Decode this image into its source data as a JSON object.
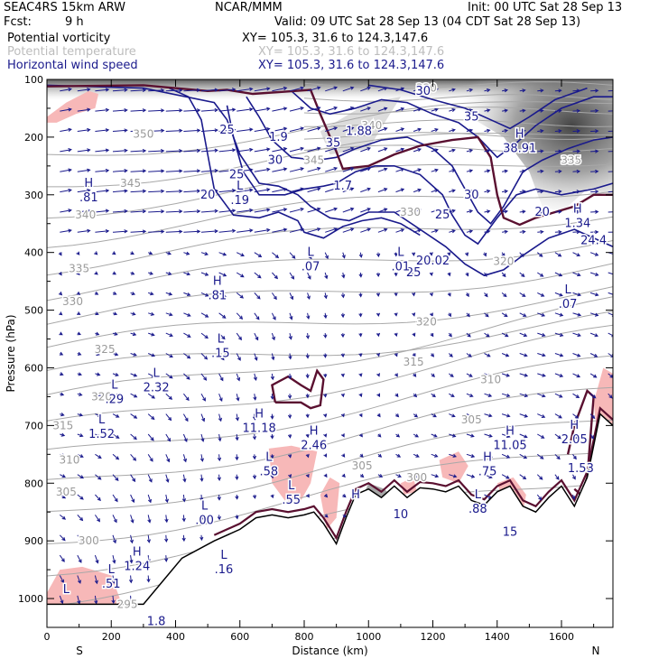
{
  "header": {
    "model": "SEAC4RS 15km ARW",
    "org": "NCAR/MMM",
    "init": "Init: 00 UTC Sat 28 Sep 13",
    "fcst_label": "Fcst:",
    "fcst_value": "9 h",
    "valid": "Valid: 09 UTC Sat 28 Sep 13 (04 CDT Sat 28 Sep 13)"
  },
  "fields": [
    {
      "name": "Potential vorticity",
      "xy": "XY= 105.3, 31.6 to 124.3,147.6",
      "color": "#000000"
    },
    {
      "name": "Potential temperature",
      "xy": "XY= 105.3, 31.6 to 124.3,147.6",
      "color": "#bdbdbd"
    },
    {
      "name": "Horizontal wind speed",
      "xy": "XY= 105.3, 31.6 to 124.3,147.6",
      "color": "#1a1a8c"
    }
  ],
  "chart_data": {
    "type": "cross-section",
    "xlabel": "Distance (km)",
    "ylabel": "Pressure (hPa)",
    "xlim": [
      0,
      1760
    ],
    "ylim": [
      1050,
      100
    ],
    "x_ticks": [
      0,
      200,
      400,
      600,
      800,
      1000,
      1200,
      1400,
      1600
    ],
    "y_ticks": [
      100,
      200,
      300,
      400,
      500,
      600,
      700,
      800,
      900,
      1000
    ],
    "x_end_labels": {
      "left": "S",
      "right": "N"
    },
    "colors": {
      "pv": "#5a1030",
      "theta": "#a8a8a8",
      "wind": "#1a1a8c",
      "pv_shade": "#f7b8b8",
      "ground": "#000000"
    },
    "terrain": [
      [
        0,
        1010
      ],
      [
        300,
        1010
      ],
      [
        420,
        930
      ],
      [
        520,
        900
      ],
      [
        600,
        880
      ],
      [
        650,
        860
      ],
      [
        700,
        855
      ],
      [
        750,
        860
      ],
      [
        800,
        855
      ],
      [
        830,
        850
      ],
      [
        860,
        870
      ],
      [
        900,
        905
      ],
      [
        930,
        860
      ],
      [
        960,
        820
      ],
      [
        1000,
        810
      ],
      [
        1040,
        825
      ],
      [
        1080,
        805
      ],
      [
        1120,
        825
      ],
      [
        1160,
        808
      ],
      [
        1200,
        810
      ],
      [
        1240,
        815
      ],
      [
        1280,
        805
      ],
      [
        1320,
        830
      ],
      [
        1360,
        838
      ],
      [
        1400,
        815
      ],
      [
        1440,
        805
      ],
      [
        1480,
        840
      ],
      [
        1520,
        850
      ],
      [
        1560,
        825
      ],
      [
        1600,
        805
      ],
      [
        1640,
        840
      ],
      [
        1680,
        790
      ],
      [
        1720,
        680
      ],
      [
        1760,
        700
      ]
    ],
    "theta_labels": [
      {
        "text": "350",
        "x": 300,
        "p": 195
      },
      {
        "text": "345",
        "x": 260,
        "p": 280
      },
      {
        "text": "340",
        "x": 120,
        "p": 335
      },
      {
        "text": "335",
        "x": 100,
        "p": 428
      },
      {
        "text": "330",
        "x": 80,
        "p": 485
      },
      {
        "text": "325",
        "x": 180,
        "p": 568
      },
      {
        "text": "320",
        "x": 170,
        "p": 650
      },
      {
        "text": "315",
        "x": 50,
        "p": 700
      },
      {
        "text": "310",
        "x": 70,
        "p": 760
      },
      {
        "text": "305",
        "x": 60,
        "p": 815
      },
      {
        "text": "300",
        "x": 130,
        "p": 900
      },
      {
        "text": "295",
        "x": 250,
        "p": 1010
      },
      {
        "text": "320",
        "x": 1180,
        "p": 520
      },
      {
        "text": "315",
        "x": 1140,
        "p": 590
      },
      {
        "text": "310",
        "x": 1380,
        "p": 620
      },
      {
        "text": "305",
        "x": 1320,
        "p": 690
      },
      {
        "text": "300",
        "x": 1150,
        "p": 790
      },
      {
        "text": "305",
        "x": 980,
        "p": 770
      },
      {
        "text": "330",
        "x": 1130,
        "p": 330
      },
      {
        "text": "320",
        "x": 1420,
        "p": 415
      },
      {
        "text": "335",
        "x": 1630,
        "p": 240
      },
      {
        "text": "340",
        "x": 1010,
        "p": 180
      },
      {
        "text": "345",
        "x": 830,
        "p": 240
      },
      {
        "text": "330",
        "x": 1180,
        "p": 115
      }
    ],
    "wind_labels": [
      {
        "text": "30",
        "x": 1170,
        "p": 120
      },
      {
        "text": "35",
        "x": 1320,
        "p": 165
      },
      {
        "text": "25",
        "x": 560,
        "p": 188
      },
      {
        "text": "30",
        "x": 710,
        "p": 240
      },
      {
        "text": "35",
        "x": 890,
        "p": 210
      },
      {
        "text": "25",
        "x": 590,
        "p": 265
      },
      {
        "text": "20",
        "x": 500,
        "p": 300
      },
      {
        "text": "30",
        "x": 1320,
        "p": 300
      },
      {
        "text": "25",
        "x": 1230,
        "p": 335
      },
      {
        "text": "20",
        "x": 1540,
        "p": 330
      },
      {
        "text": "25",
        "x": 1140,
        "p": 435
      }
    ],
    "pv_labels": [
      {
        "text": "1.88",
        "x": 970,
        "p": 190
      },
      {
        "text": "1.7",
        "x": 920,
        "p": 285
      },
      {
        "text": "1.9",
        "x": 720,
        "p": 200
      }
    ],
    "extrema": [
      {
        "letter": "H",
        "value": ".81",
        "x": 130,
        "p": 300
      },
      {
        "letter": "L",
        "value": ".19",
        "x": 600,
        "p": 305
      },
      {
        "letter": "H",
        "value": "38.91",
        "x": 1470,
        "p": 215
      },
      {
        "letter": "H",
        "value": "1.34",
        "x": 1650,
        "p": 345
      },
      {
        "letter": "",
        "value": "24.4",
        "x": 1700,
        "p": 375
      },
      {
        "letter": "L",
        "value": ".07",
        "x": 820,
        "p": 420
      },
      {
        "letter": "L",
        "value": ".01",
        "x": 1100,
        "p": 420
      },
      {
        "letter": "",
        "value": "20.02",
        "x": 1200,
        "p": 410
      },
      {
        "letter": "H",
        "value": ".81",
        "x": 530,
        "p": 470
      },
      {
        "letter": "L",
        "value": ".07",
        "x": 1620,
        "p": 485
      },
      {
        "letter": "L",
        "value": ".15",
        "x": 540,
        "p": 570
      },
      {
        "letter": "L",
        "value": "2.32",
        "x": 340,
        "p": 630
      },
      {
        "letter": "L",
        "value": ".29",
        "x": 210,
        "p": 650
      },
      {
        "letter": "L",
        "value": "1.52",
        "x": 170,
        "p": 710
      },
      {
        "letter": "H",
        "value": "11.18",
        "x": 660,
        "p": 700
      },
      {
        "letter": "H",
        "value": "2.46",
        "x": 830,
        "p": 730
      },
      {
        "letter": "H",
        "value": "11.05",
        "x": 1440,
        "p": 730
      },
      {
        "letter": "H",
        "value": "2.05",
        "x": 1640,
        "p": 720
      },
      {
        "letter": "",
        "value": "1.53",
        "x": 1660,
        "p": 770
      },
      {
        "letter": "L",
        "value": ".58",
        "x": 690,
        "p": 775
      },
      {
        "letter": "L",
        "value": ".55",
        "x": 760,
        "p": 825
      },
      {
        "letter": "H",
        "value": ".75",
        "x": 1370,
        "p": 775
      },
      {
        "letter": "L",
        "value": ".00",
        "x": 490,
        "p": 860
      },
      {
        "letter": "H",
        "value": "",
        "x": 960,
        "p": 840
      },
      {
        "letter": "",
        "value": "10",
        "x": 1100,
        "p": 850
      },
      {
        "letter": "L",
        "value": ".88",
        "x": 1340,
        "p": 840
      },
      {
        "letter": "",
        "value": "15",
        "x": 1440,
        "p": 880
      },
      {
        "letter": "H",
        "value": "1.24",
        "x": 280,
        "p": 940
      },
      {
        "letter": "L",
        "value": ".51",
        "x": 200,
        "p": 970
      },
      {
        "letter": "L",
        "value": ".16",
        "x": 550,
        "p": 945
      },
      {
        "letter": "L",
        "value": "",
        "x": 60,
        "p": 1005
      },
      {
        "letter": "",
        "value": "1.8",
        "x": 340,
        "p": 1035
      }
    ]
  }
}
